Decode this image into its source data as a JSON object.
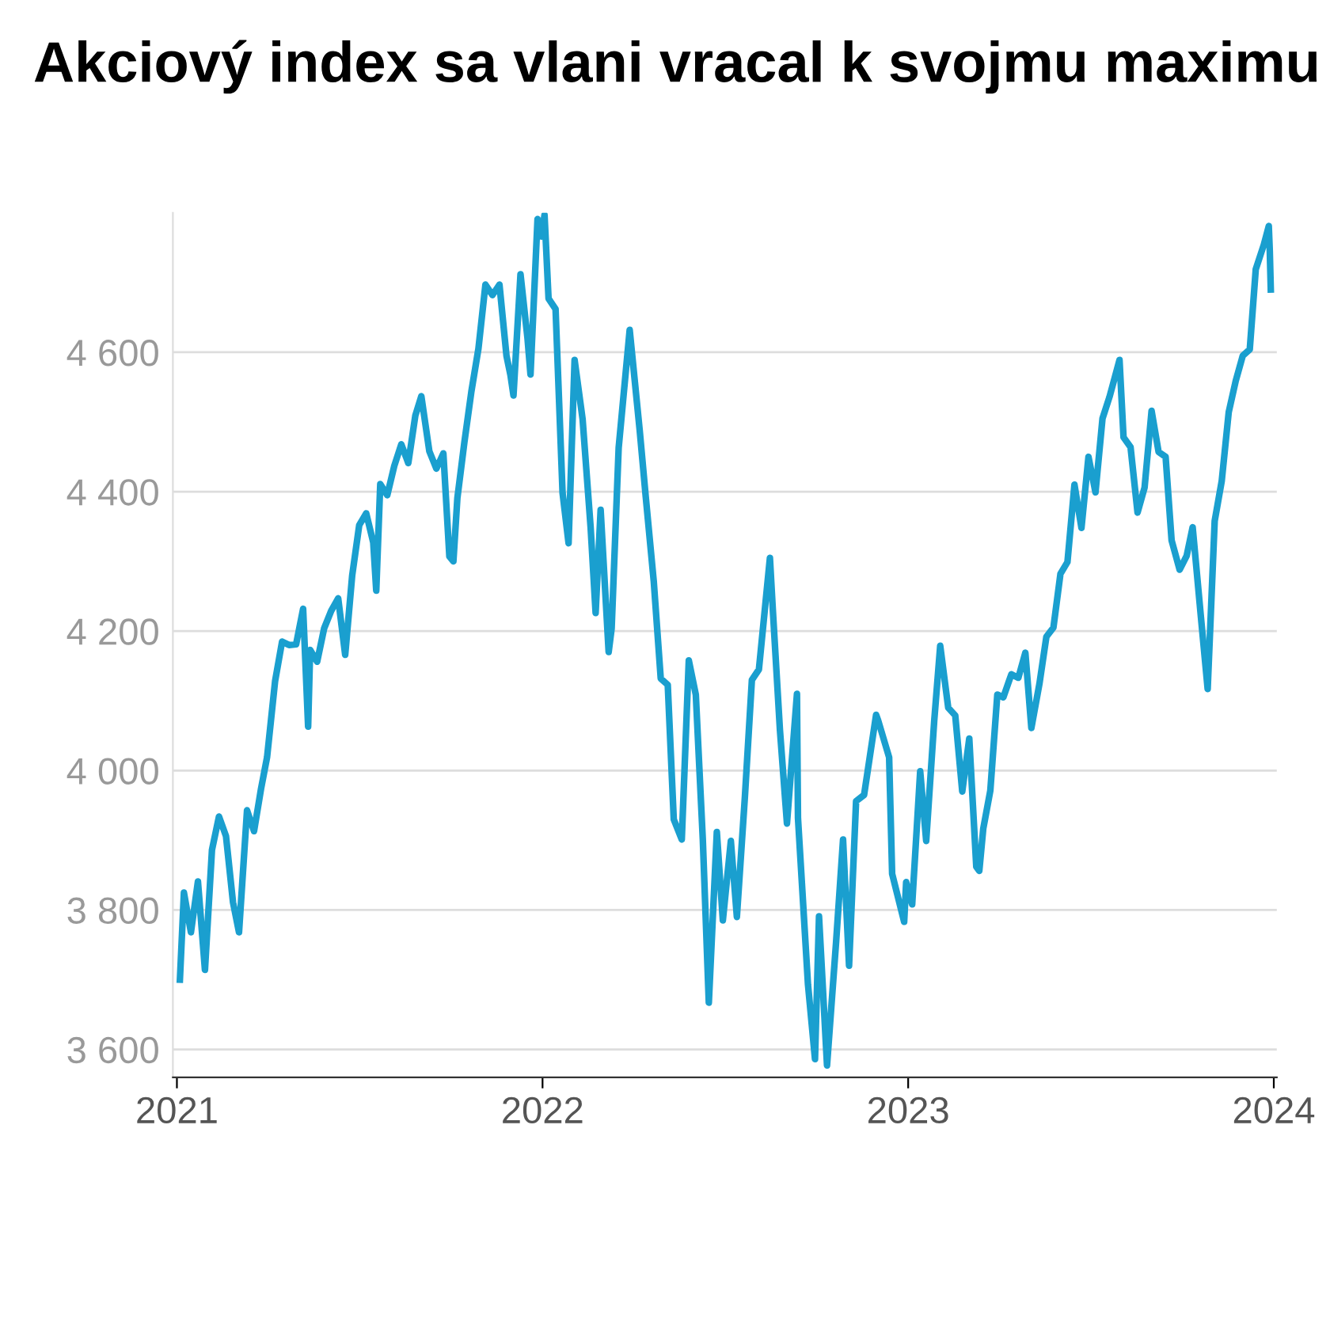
{
  "chart_data": {
    "type": "line",
    "title": "Akciový index sa vlani vracal k svojmu maximu",
    "x": [
      "2021-01-04",
      "2021-01-08",
      "2021-01-15",
      "2021-01-22",
      "2021-01-29",
      "2021-02-05",
      "2021-02-12",
      "2021-02-19",
      "2021-02-26",
      "2021-03-04",
      "2021-03-12",
      "2021-03-19",
      "2021-03-26",
      "2021-04-01",
      "2021-04-09",
      "2021-04-16",
      "2021-04-23",
      "2021-04-30",
      "2021-05-07",
      "2021-05-12",
      "2021-05-14",
      "2021-05-21",
      "2021-05-28",
      "2021-06-04",
      "2021-06-11",
      "2021-06-18",
      "2021-06-25",
      "2021-07-02",
      "2021-07-09",
      "2021-07-16",
      "2021-07-19",
      "2021-07-23",
      "2021-07-30",
      "2021-08-06",
      "2021-08-13",
      "2021-08-20",
      "2021-08-27",
      "2021-09-02",
      "2021-09-10",
      "2021-09-17",
      "2021-09-24",
      "2021-09-30",
      "2021-10-04",
      "2021-10-08",
      "2021-10-15",
      "2021-10-22",
      "2021-10-29",
      "2021-11-05",
      "2021-11-12",
      "2021-11-19",
      "2021-11-26",
      "2021-11-30",
      "2021-12-03",
      "2021-12-10",
      "2021-12-17",
      "2021-12-20",
      "2021-12-27",
      "2021-12-31",
      "2022-01-03",
      "2022-01-07",
      "2022-01-14",
      "2022-01-21",
      "2022-01-27",
      "2022-02-02",
      "2022-02-10",
      "2022-02-18",
      "2022-02-23",
      "2022-02-28",
      "2022-03-08",
      "2022-03-11",
      "2022-03-18",
      "2022-03-29",
      "2022-04-08",
      "2022-04-14",
      "2022-04-22",
      "2022-04-29",
      "2022-05-06",
      "2022-05-12",
      "2022-05-20",
      "2022-05-27",
      "2022-06-03",
      "2022-06-10",
      "2022-06-16",
      "2022-06-24",
      "2022-06-30",
      "2022-07-08",
      "2022-07-14",
      "2022-07-22",
      "2022-07-29",
      "2022-08-05",
      "2022-08-16",
      "2022-08-19",
      "2022-08-26",
      "2022-09-02",
      "2022-09-12",
      "2022-09-13",
      "2022-09-23",
      "2022-09-30",
      "2022-10-04",
      "2022-10-12",
      "2022-10-21",
      "2022-10-28",
      "2022-11-03",
      "2022-11-10",
      "2022-11-18",
      "2022-11-30",
      "2022-12-02",
      "2022-12-13",
      "2022-12-16",
      "2022-12-28",
      "2022-12-30",
      "2023-01-05",
      "2023-01-13",
      "2023-01-19",
      "2023-01-27",
      "2023-02-02",
      "2023-02-10",
      "2023-02-17",
      "2023-02-24",
      "2023-03-03",
      "2023-03-10",
      "2023-03-13",
      "2023-03-17",
      "2023-03-24",
      "2023-03-31",
      "2023-04-06",
      "2023-04-14",
      "2023-04-21",
      "2023-04-28",
      "2023-05-04",
      "2023-05-12",
      "2023-05-19",
      "2023-05-26",
      "2023-06-02",
      "2023-06-09",
      "2023-06-16",
      "2023-06-23",
      "2023-06-30",
      "2023-07-07",
      "2023-07-14",
      "2023-07-21",
      "2023-07-31",
      "2023-08-04",
      "2023-08-11",
      "2023-08-18",
      "2023-08-25",
      "2023-09-01",
      "2023-09-08",
      "2023-09-15",
      "2023-09-21",
      "2023-09-29",
      "2023-10-06",
      "2023-10-12",
      "2023-10-20",
      "2023-10-27",
      "2023-11-03",
      "2023-11-10",
      "2023-11-17",
      "2023-11-24",
      "2023-12-01",
      "2023-12-08",
      "2023-12-14",
      "2023-12-22",
      "2023-12-27",
      "2023-12-28",
      "2023-12-29"
    ],
    "series": [
      {
        "color": "#1a9fcf",
        "values": [
          3700,
          3825,
          3768,
          3841,
          3714,
          3886,
          3934,
          3906,
          3811,
          3768,
          3943,
          3913,
          3974,
          4019,
          4128,
          4185,
          4180,
          4181,
          4232,
          4063,
          4173,
          4156,
          4204,
          4229,
          4247,
          4166,
          4280,
          4352,
          4369,
          4327,
          4258,
          4411,
          4395,
          4437,
          4468,
          4441,
          4509,
          4537,
          4458,
          4433,
          4455,
          4307,
          4300,
          4391,
          4471,
          4544,
          4605,
          4697,
          4682,
          4697,
          4595,
          4567,
          4538,
          4712,
          4620,
          4568,
          4791,
          4766,
          4797,
          4677,
          4662,
          4398,
          4326,
          4589,
          4504,
          4349,
          4226,
          4374,
          4170,
          4204,
          4463,
          4632,
          4488,
          4393,
          4272,
          4132,
          4123,
          3930,
          3901,
          4158,
          4109,
          3901,
          3667,
          3912,
          3785,
          3899,
          3790,
          3962,
          4130,
          4145,
          4305,
          4228,
          4058,
          3924,
          4110,
          3932,
          3693,
          3586,
          3791,
          3577,
          3753,
          3901,
          3720,
          3956,
          3965,
          4080,
          4072,
          4019,
          3852,
          3783,
          3840,
          3808,
          3999,
          3899,
          4071,
          4179,
          4090,
          4079,
          3970,
          4046,
          3862,
          3856,
          3917,
          3971,
          4109,
          4105,
          4138,
          4133,
          4169,
          4061,
          4124,
          4192,
          4205,
          4282,
          4299,
          4410,
          4348,
          4450,
          4399,
          4505,
          4536,
          4589,
          4478,
          4464,
          4370,
          4406,
          4516,
          4457,
          4450,
          4330,
          4288,
          4308,
          4349,
          4224,
          4117,
          4358,
          4415,
          4514,
          4559,
          4595,
          4604,
          4719,
          4754,
          4781,
          4745,
          4690
        ]
      }
    ],
    "xlim": [
      "2020-12-28",
      "2024-01-04"
    ],
    "xticks": [
      {
        "value": "2021-01-01",
        "label": "2021"
      },
      {
        "value": "2022-01-01",
        "label": "2022"
      },
      {
        "value": "2023-01-01",
        "label": "2023"
      },
      {
        "value": "2024-01-01",
        "label": "2024"
      }
    ],
    "ylim": [
      3560,
      4800
    ],
    "yticks": [
      {
        "value": 3600,
        "label": "3 600"
      },
      {
        "value": 3800,
        "label": "3 800"
      },
      {
        "value": 4000,
        "label": "4 000"
      },
      {
        "value": 4200,
        "label": "4 200"
      },
      {
        "value": 4400,
        "label": "4 400"
      },
      {
        "value": 4600,
        "label": "4 600"
      }
    ],
    "grid": "y",
    "marker": "none",
    "line_style": "solid"
  }
}
